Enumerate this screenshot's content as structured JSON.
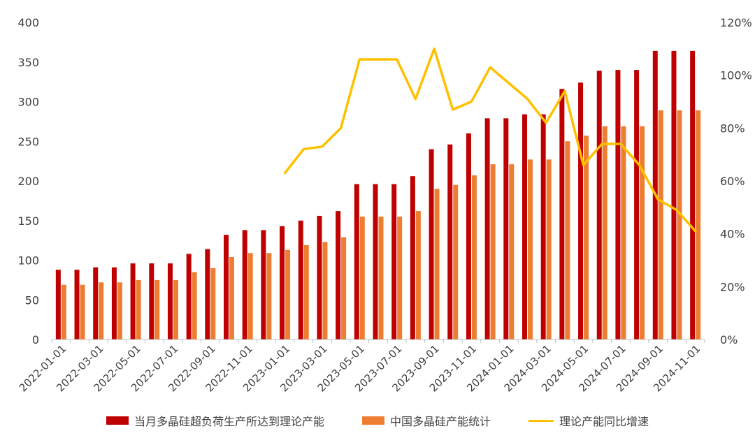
{
  "chart_data": {
    "type": "bar",
    "categories": [
      "2022-01-01",
      "2022-02-01",
      "2022-03-01",
      "2022-04-01",
      "2022-05-01",
      "2022-06-01",
      "2022-07-01",
      "2022-08-01",
      "2022-09-01",
      "2022-10-01",
      "2022-11-01",
      "2022-12-01",
      "2023-01-01",
      "2023-02-01",
      "2023-03-01",
      "2023-04-01",
      "2023-05-01",
      "2023-06-01",
      "2023-07-01",
      "2023-08-01",
      "2023-09-01",
      "2023-10-01",
      "2023-11-01",
      "2023-12-01",
      "2024-01-01",
      "2024-02-01",
      "2024-03-01",
      "2024-04-01",
      "2024-05-01",
      "2024-06-01",
      "2024-07-01",
      "2024-08-01",
      "2024-09-01",
      "2024-10-01",
      "2024-11-01"
    ],
    "x_tick_labels": [
      "2022-01-01",
      "2022-03-01",
      "2022-05-01",
      "2022-07-01",
      "2022-09-01",
      "2022-11-01",
      "2023-01-01",
      "2023-03-01",
      "2023-05-01",
      "2023-07-01",
      "2023-09-01",
      "2023-11-01",
      "2024-01-01",
      "2024-03-01",
      "2024-05-01",
      "2024-07-01",
      "2024-09-01",
      "2024-11-01"
    ],
    "series": [
      {
        "name": "当月多晶硅超负荷生产所达到理论产能",
        "kind": "bar",
        "axis": "left",
        "color": "#C00000",
        "values": [
          88,
          88,
          91,
          91,
          96,
          96,
          96,
          108,
          114,
          132,
          138,
          138,
          143,
          150,
          156,
          162,
          196,
          196,
          196,
          206,
          240,
          246,
          260,
          279,
          279,
          284,
          284,
          316,
          324,
          339,
          340,
          340,
          364,
          364,
          364
        ]
      },
      {
        "name": "中国多晶硅产能统计",
        "kind": "bar",
        "axis": "left",
        "color": "#ED7D31",
        "values": [
          69,
          69,
          72,
          72,
          75,
          75,
          75,
          85,
          90,
          104,
          109,
          109,
          113,
          119,
          123,
          129,
          155,
          155,
          155,
          162,
          190,
          195,
          207,
          221,
          221,
          227,
          227,
          250,
          257,
          269,
          269,
          269,
          289,
          289,
          289
        ]
      },
      {
        "name": "理论产能同比增速",
        "kind": "line",
        "axis": "right",
        "color": "#FFC000",
        "values": [
          null,
          null,
          null,
          null,
          null,
          null,
          null,
          null,
          null,
          null,
          null,
          null,
          63,
          72,
          73,
          80,
          106,
          106,
          106,
          91,
          110,
          87,
          90,
          103,
          97,
          91,
          82,
          94,
          66,
          74,
          74,
          66,
          53,
          49,
          41
        ]
      }
    ],
    "y_left": {
      "min": 0,
      "max": 400,
      "ticks": [
        0,
        50,
        100,
        150,
        200,
        250,
        300,
        350,
        400
      ]
    },
    "y_right": {
      "min": 0,
      "max": 120,
      "unit": "%",
      "ticks": [
        "0%",
        "20%",
        "40%",
        "60%",
        "80%",
        "100%",
        "120%"
      ]
    },
    "grid": false,
    "legend_position": "bottom"
  }
}
